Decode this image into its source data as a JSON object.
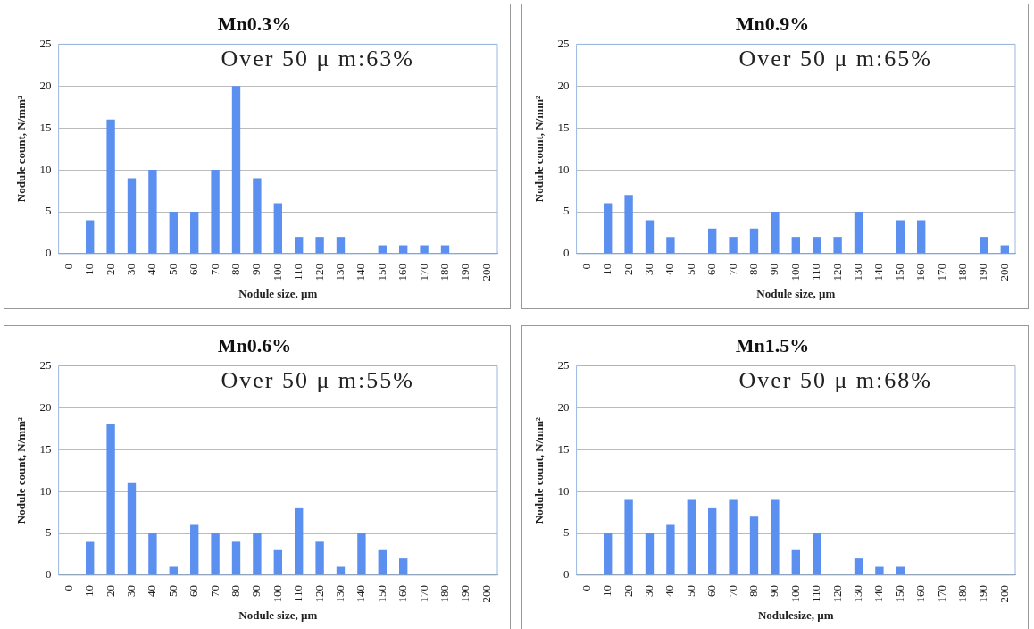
{
  "chart_data": [
    {
      "type": "bar",
      "title": "Mn0.3%",
      "xlabel": "Nodule size, µm",
      "ylabel": "Nodule count, N/mm²",
      "annotations": [
        "Over 50 μ m:63%"
      ],
      "categories": [
        "0",
        "10",
        "20",
        "30",
        "40",
        "50",
        "60",
        "70",
        "80",
        "90",
        "100",
        "110",
        "120",
        "130",
        "140",
        "150",
        "160",
        "170",
        "180",
        "190",
        "200"
      ],
      "values": [
        0,
        4,
        16,
        9,
        10,
        5,
        5,
        10,
        20,
        9,
        6,
        2,
        2,
        2,
        0,
        1,
        1,
        1,
        1,
        0,
        0
      ],
      "color": "#5b8ff0",
      "ylim": [
        0,
        25
      ],
      "yticks": [
        0,
        5,
        10,
        15,
        20,
        25
      ],
      "grid": "y"
    },
    {
      "type": "bar",
      "title": "Mn0.9%",
      "xlabel": "Nodule size, µm",
      "ylabel": "Nodule count, N/mm²",
      "annotations": [
        "Over 50 μ m:65%"
      ],
      "categories": [
        "0",
        "10",
        "20",
        "30",
        "40",
        "50",
        "60",
        "70",
        "80",
        "90",
        "100",
        "110",
        "120",
        "130",
        "140",
        "150",
        "160",
        "170",
        "180",
        "190",
        "200"
      ],
      "values": [
        0,
        6,
        7,
        4,
        2,
        0,
        3,
        2,
        3,
        5,
        2,
        2,
        2,
        5,
        0,
        4,
        4,
        0,
        0,
        2,
        1
      ],
      "color": "#5b8ff0",
      "ylim": [
        0,
        25
      ],
      "yticks": [
        0,
        5,
        10,
        15,
        20,
        25
      ],
      "grid": "y"
    },
    {
      "type": "bar",
      "title": "Mn0.6%",
      "xlabel": "Nodule size, µm",
      "ylabel": "Nodule count, N/mm²",
      "annotations": [
        "Over 50 μ m:55%"
      ],
      "categories": [
        "0",
        "10",
        "20",
        "30",
        "40",
        "50",
        "60",
        "70",
        "80",
        "90",
        "100",
        "110",
        "120",
        "130",
        "140",
        "150",
        "160",
        "170",
        "180",
        "190",
        "200"
      ],
      "values": [
        0,
        4,
        18,
        11,
        5,
        1,
        6,
        5,
        4,
        5,
        3,
        8,
        4,
        1,
        5,
        3,
        2,
        0,
        0,
        0,
        0
      ],
      "color": "#5b8ff0",
      "ylim": [
        0,
        25
      ],
      "yticks": [
        0,
        5,
        10,
        15,
        20,
        25
      ],
      "grid": "y"
    },
    {
      "type": "bar",
      "title": "Mn1.5%",
      "xlabel": "Nodulesize, µm",
      "ylabel": "Nodule count, N/mm²",
      "annotations": [
        "Over 50 μ m:68%"
      ],
      "categories": [
        "0",
        "10",
        "20",
        "30",
        "40",
        "50",
        "60",
        "70",
        "80",
        "90",
        "100",
        "110",
        "120",
        "130",
        "140",
        "150",
        "160",
        "170",
        "180",
        "190",
        "200"
      ],
      "values": [
        0,
        5,
        9,
        5,
        6,
        9,
        8,
        9,
        7,
        9,
        3,
        5,
        0,
        2,
        1,
        1,
        0,
        0,
        0,
        0,
        0
      ],
      "color": "#5b8ff0",
      "ylim": [
        0,
        25
      ],
      "yticks": [
        0,
        5,
        10,
        15,
        20,
        25
      ],
      "grid": "y"
    }
  ]
}
